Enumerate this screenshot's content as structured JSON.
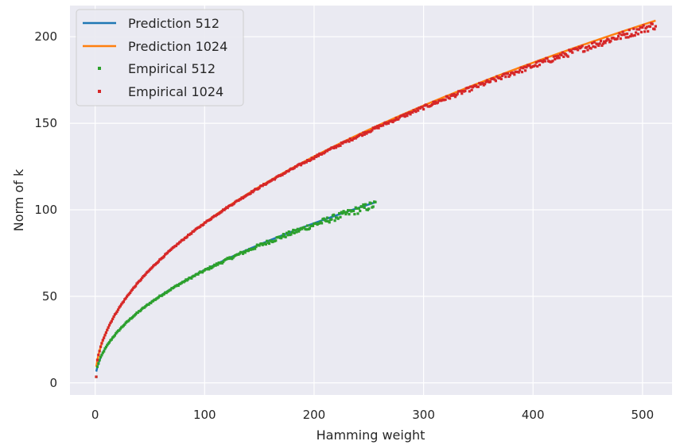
{
  "chart_data": {
    "type": "line",
    "xlabel": "Hamming weight",
    "ylabel": "Norm of k",
    "xlim": [
      -23,
      527
    ],
    "ylim": [
      -7,
      218
    ],
    "x_ticks": [
      0,
      100,
      200,
      300,
      400,
      500
    ],
    "y_ticks": [
      0,
      50,
      100,
      150,
      200
    ],
    "x_tick_labels": [
      "0",
      "100",
      "200",
      "300",
      "400",
      "500"
    ],
    "y_tick_labels": [
      "0",
      "50",
      "100",
      "150",
      "200"
    ],
    "grid": true,
    "background": "#eaeaf2",
    "legend_position": "top-left",
    "series": [
      {
        "name": "Prediction 512",
        "kind": "line",
        "color": "#1f77b4",
        "formula": "sqrt(4*n*(512-n)/512)*sqrt(512/3)/ (sqrt(512/3)) ",
        "coef": 6.52,
        "x_range": [
          1,
          256
        ]
      },
      {
        "name": "Prediction 1024",
        "kind": "line",
        "color": "#ff7f0e",
        "coef": 9.25,
        "x_range": [
          1,
          512
        ]
      },
      {
        "name": "Empirical 512",
        "kind": "scatter",
        "color": "#2ca02c",
        "coef": 6.52,
        "x_range": [
          1,
          256
        ],
        "samples": [
          [
            1,
            3.5
          ],
          [
            2,
            9.5
          ],
          [
            3,
            11.5
          ],
          [
            5,
            14.5
          ],
          [
            10,
            20.5
          ],
          [
            20,
            29
          ],
          [
            50,
            46
          ],
          [
            100,
            65
          ],
          [
            150,
            79.5
          ],
          [
            200,
            91.5
          ],
          [
            230,
            97.5
          ],
          [
            256,
            102
          ]
        ]
      },
      {
        "name": "Empirical 1024",
        "kind": "scatter",
        "color": "#d62728",
        "coef": 9.25,
        "x_range": [
          1,
          512
        ],
        "samples": [
          [
            1,
            3.5
          ],
          [
            2,
            13
          ],
          [
            5,
            20.5
          ],
          [
            10,
            29
          ],
          [
            20,
            41
          ],
          [
            50,
            65
          ],
          [
            100,
            92.5
          ],
          [
            200,
            131
          ],
          [
            300,
            160
          ],
          [
            400,
            184
          ],
          [
            450,
            194
          ],
          [
            500,
            203
          ],
          [
            512,
            205
          ]
        ]
      }
    ]
  }
}
